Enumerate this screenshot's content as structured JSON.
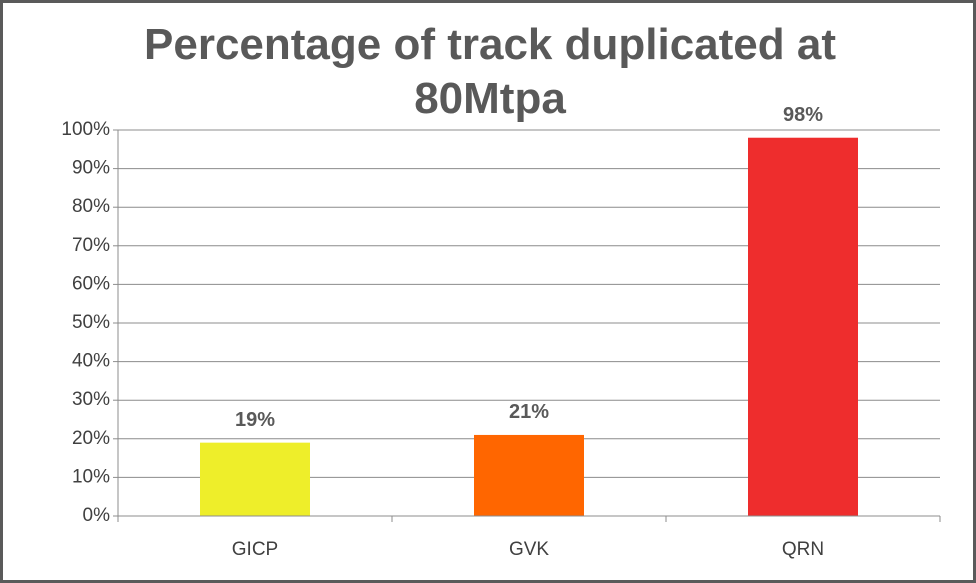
{
  "chart_data": {
    "type": "bar",
    "title": "Percentage of track duplicated at 80Mtpa",
    "categories": [
      "GICP",
      "GVK",
      "QRN"
    ],
    "values": [
      19,
      21,
      98
    ],
    "value_labels": [
      "19%",
      "21%",
      "98%"
    ],
    "colors": [
      "#eeee2a",
      "#ff6600",
      "#ee2d2d"
    ],
    "ylim": [
      0,
      100
    ],
    "yticks": [
      {
        "value": 0,
        "label": "0%"
      },
      {
        "value": 10,
        "label": "10%"
      },
      {
        "value": 20,
        "label": "20%"
      },
      {
        "value": 30,
        "label": "30%"
      },
      {
        "value": 40,
        "label": "40%"
      },
      {
        "value": 50,
        "label": "50%"
      },
      {
        "value": 60,
        "label": "60%"
      },
      {
        "value": 70,
        "label": "70%"
      },
      {
        "value": 80,
        "label": "80%"
      },
      {
        "value": 90,
        "label": "90%"
      },
      {
        "value": 100,
        "label": "100%"
      }
    ],
    "grid": true
  }
}
